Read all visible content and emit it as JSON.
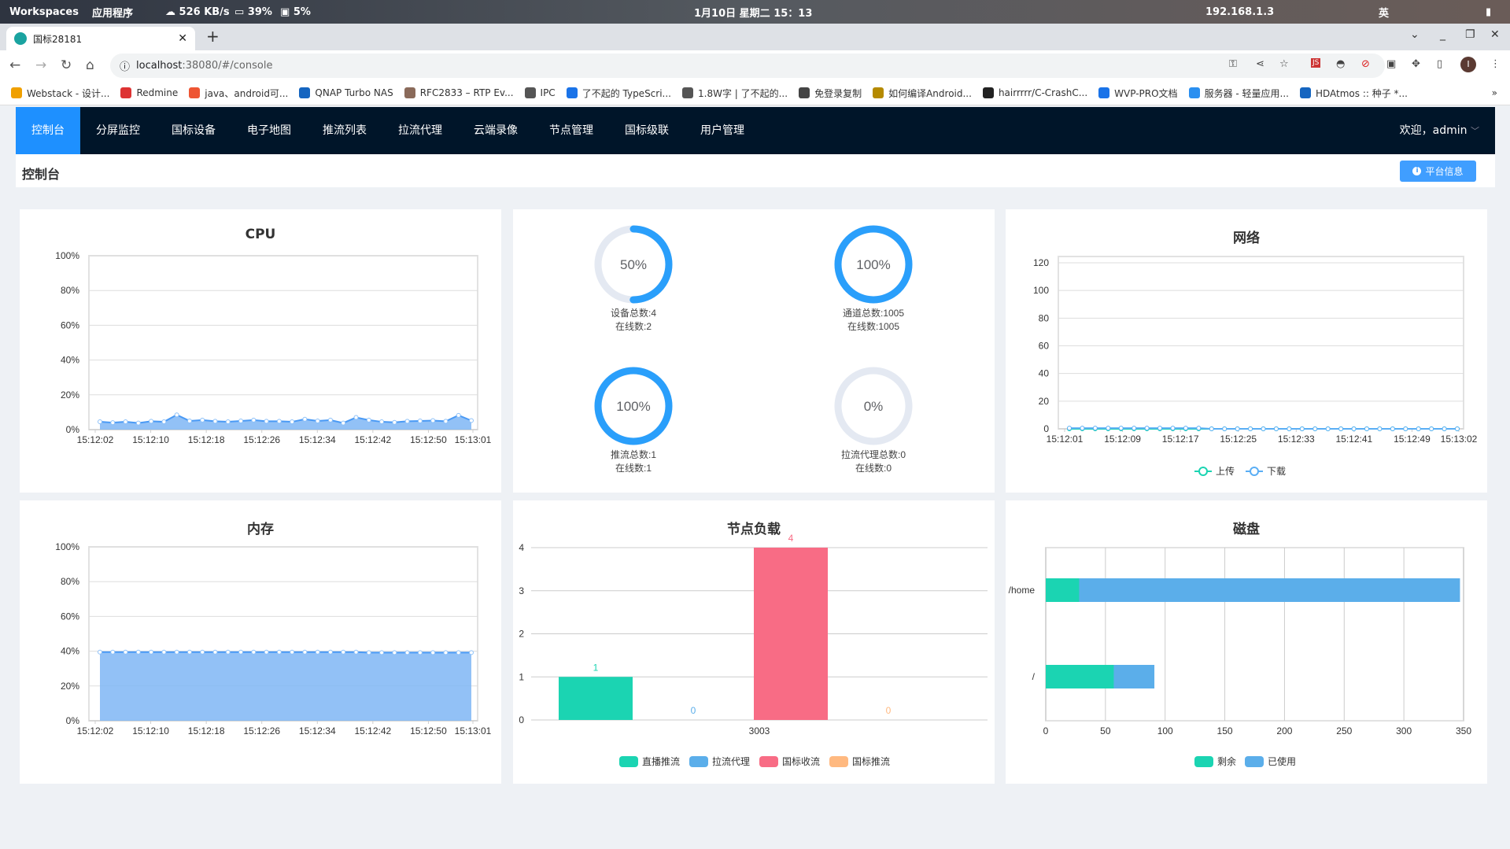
{
  "os_bar": {
    "workspaces": "Workspaces",
    "apps": "应用程序",
    "net_speed": "526 KB/s",
    "cpu": "39%",
    "mem": "5%",
    "datetime": "1月10日 星期二 15：13",
    "ip": "192.168.1.3",
    "ime": "英"
  },
  "browser": {
    "tab_title": "国标28181",
    "url_host": "localhost",
    "url_rest": ":38080/#/console",
    "bookmarks": [
      "Webstack - 设计...",
      "Redmine",
      "java、android可...",
      "QNAP Turbo NAS",
      "RFC2833 – RTP Ev...",
      "IPC",
      "了不起的 TypeScri...",
      "1.8W字 | 了不起的...",
      "免登录复制",
      "如何编译Android...",
      "hairrrrr/C-CrashC...",
      "WVP-PRO文档",
      "服务器 - 轻量应用...",
      "HDAtmos :: 种子 *..."
    ],
    "bookmark_colors": [
      "#f0a000",
      "#d33",
      "#e53",
      "#1565c0",
      "#8a6a5a",
      "#555",
      "#1a73e8",
      "#555",
      "#444",
      "#b58a00",
      "#222",
      "#1a73e8",
      "#2a8ff0",
      "#1565c0"
    ]
  },
  "nav": {
    "items": [
      "控制台",
      "分屏监控",
      "国标设备",
      "电子地图",
      "推流列表",
      "拉流代理",
      "云端录像",
      "节点管理",
      "国标级联",
      "用户管理"
    ],
    "active": 0,
    "welcome": "欢迎，admin"
  },
  "header": {
    "title": "控制台",
    "platform_info": "平台信息"
  },
  "colors": {
    "primary": "#409eff",
    "nav_bg": "#001529",
    "active": "#1e90ff",
    "teal": "#1bd4b2",
    "blue": "#5baeea",
    "pink": "#f86c85",
    "orange": "#ffb980",
    "gauge": "#2a9ffb",
    "track": "#e4e9f2"
  },
  "gauges": [
    {
      "percent": 50,
      "label": "50%",
      "line1": "设备总数:4",
      "line2": "在线数:2"
    },
    {
      "percent": 100,
      "label": "100%",
      "line1": "通道总数:1005",
      "line2": "在线数:1005"
    },
    {
      "percent": 100,
      "label": "100%",
      "line1": "推流总数:1",
      "line2": "在线数:1"
    },
    {
      "percent": 0,
      "label": "0%",
      "line1": "拉流代理总数:0",
      "line2": "在线数:0"
    }
  ],
  "chart_data": [
    {
      "id": "cpu",
      "type": "area",
      "title": "CPU",
      "ylim": [
        0,
        100
      ],
      "yticks": [
        "0%",
        "20%",
        "40%",
        "60%",
        "80%",
        "100%"
      ],
      "x": [
        "15:12:02",
        "15:12:04",
        "15:12:06",
        "15:12:08",
        "15:12:10",
        "15:12:12",
        "15:12:14",
        "15:12:16",
        "15:12:18",
        "15:12:20",
        "15:12:22",
        "15:12:24",
        "15:12:26",
        "15:12:28",
        "15:12:30",
        "15:12:32",
        "15:12:34",
        "15:12:36",
        "15:12:38",
        "15:12:40",
        "15:12:42",
        "15:12:44",
        "15:12:46",
        "15:12:48",
        "15:12:50",
        "15:12:52",
        "15:12:54",
        "15:12:56",
        "15:12:58",
        "15:13:01"
      ],
      "xticks": [
        "15:12:02",
        "15:12:10",
        "15:12:18",
        "15:12:26",
        "15:12:34",
        "15:12:42",
        "15:12:50",
        "15:13:01"
      ],
      "values": [
        4.5,
        4,
        4.5,
        3.8,
        4.8,
        4.5,
        8.5,
        5,
        5.5,
        4.8,
        4.5,
        5,
        5.5,
        4.8,
        4.8,
        4.5,
        6,
        5,
        5.5,
        3.8,
        7,
        5.5,
        4.5,
        4.2,
        4.8,
        5,
        5.2,
        4.8,
        8.2,
        5.2
      ]
    },
    {
      "id": "network",
      "type": "line",
      "title": "网络",
      "ylim": [
        0,
        120
      ],
      "yticks": [
        "0",
        "20",
        "40",
        "60",
        "80",
        "100",
        "120"
      ],
      "xticks": [
        "15:12:01",
        "15:12:09",
        "15:12:17",
        "15:12:25",
        "15:12:33",
        "15:12:41",
        "15:12:49",
        "15:13:02"
      ],
      "series": [
        {
          "name": "上传",
          "values": [
            0,
            0,
            0,
            0,
            0,
            0,
            0,
            0,
            0,
            0,
            0,
            0,
            0,
            0,
            0,
            0,
            0,
            0,
            0,
            0,
            0,
            0,
            0,
            0,
            0,
            0,
            0,
            0,
            0,
            0,
            0
          ]
        },
        {
          "name": "下载",
          "values": [
            0.5,
            0.5,
            0.5,
            0.5,
            0.5,
            0.5,
            0.5,
            0.5,
            0.5,
            0.5,
            0.5,
            0,
            0,
            0,
            0,
            0,
            0,
            0,
            0,
            0,
            0,
            0,
            0,
            0,
            0,
            0,
            0,
            0,
            0,
            0,
            0
          ]
        }
      ]
    },
    {
      "id": "memory",
      "type": "area",
      "title": "内存",
      "ylim": [
        0,
        100
      ],
      "yticks": [
        "0%",
        "20%",
        "40%",
        "60%",
        "80%",
        "100%"
      ],
      "xticks": [
        "15:12:02",
        "15:12:10",
        "15:12:18",
        "15:12:26",
        "15:12:34",
        "15:12:42",
        "15:12:50",
        "15:13:01"
      ],
      "values": [
        39.5,
        39.5,
        39.5,
        39.5,
        39.5,
        39.5,
        39.5,
        39.5,
        39.5,
        39.5,
        39.5,
        39.5,
        39.5,
        39.5,
        39.5,
        39.5,
        39.5,
        39.5,
        39.5,
        39.5,
        39.5,
        39.2,
        39.2,
        39.2,
        39.2,
        39.2,
        39.2,
        39.2,
        39.2,
        39.2
      ]
    },
    {
      "id": "node-load",
      "type": "bar",
      "title": "节点负载",
      "ylim": [
        0,
        4
      ],
      "yticks": [
        "0",
        "1",
        "2",
        "3",
        "4"
      ],
      "categories": [
        "3003"
      ],
      "series": [
        {
          "name": "直播推流",
          "values": [
            1
          ]
        },
        {
          "name": "拉流代理",
          "values": [
            0
          ]
        },
        {
          "name": "国标收流",
          "values": [
            4
          ]
        },
        {
          "name": "国标推流",
          "values": [
            0
          ]
        }
      ]
    },
    {
      "id": "disk",
      "type": "bar",
      "orientation": "horizontal",
      "stacked": true,
      "title": "磁盘",
      "xlim": [
        0,
        350
      ],
      "xticks": [
        "0",
        "50",
        "100",
        "150",
        "200",
        "250",
        "300",
        "350"
      ],
      "categories": [
        "/home",
        "/"
      ],
      "series": [
        {
          "name": "剩余",
          "values": [
            28,
            57
          ]
        },
        {
          "name": "已使用",
          "values": [
            319,
            34
          ]
        }
      ]
    }
  ]
}
